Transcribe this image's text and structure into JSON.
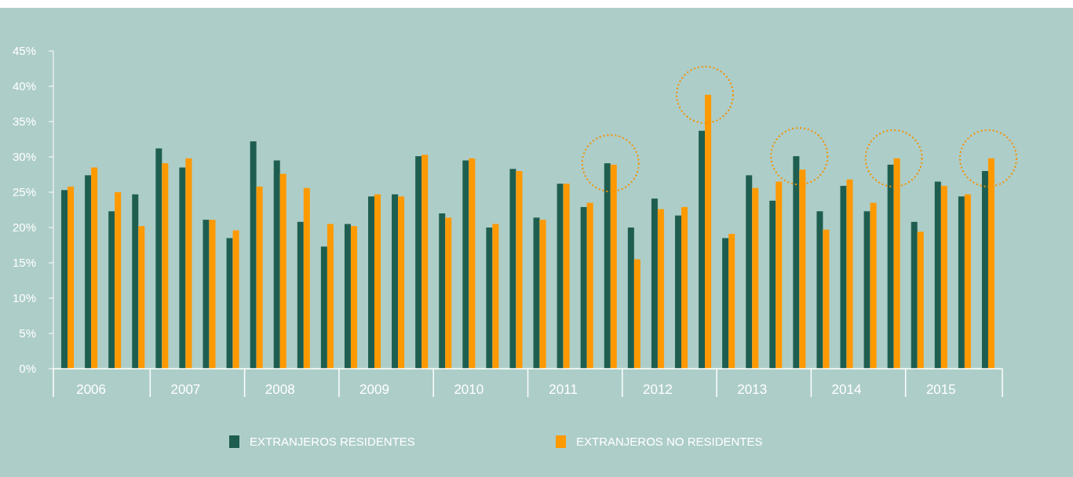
{
  "chart_data": {
    "type": "bar",
    "categories": [
      null,
      "2006",
      null,
      null,
      null,
      "2007",
      null,
      null,
      null,
      "2008",
      null,
      null,
      null,
      "2009",
      null,
      null,
      null,
      "2010",
      null,
      null,
      null,
      "2011",
      null,
      null,
      null,
      "2012",
      null,
      null,
      null,
      "2013",
      null,
      null,
      null,
      "2014",
      null,
      null,
      null,
      "2015",
      null,
      null
    ],
    "series": [
      {
        "name": "EXTRANJEROS RESIDENTES",
        "color": "#1e5e50",
        "values": [
          25.3,
          27.4,
          22.3,
          24.7,
          31.2,
          28.5,
          21.1,
          18.5,
          32.2,
          29.5,
          20.8,
          17.3,
          20.5,
          24.4,
          24.7,
          30.1,
          22.0,
          29.5,
          20.0,
          28.3,
          21.4,
          26.2,
          22.9,
          29.1,
          20.0,
          24.1,
          21.7,
          33.7,
          18.5,
          27.4,
          23.8,
          30.1,
          22.3,
          25.9,
          22.3,
          28.9,
          20.8,
          26.5,
          24.4,
          28.0
        ]
      },
      {
        "name": "EXTRANJEROS NO RESIDENTES",
        "color": "#ff9900",
        "values": [
          25.8,
          28.5,
          25.0,
          20.2,
          29.1,
          29.8,
          21.1,
          19.6,
          25.8,
          27.6,
          25.6,
          20.5,
          20.2,
          24.7,
          24.4,
          30.3,
          21.4,
          29.8,
          20.5,
          28.0,
          21.1,
          26.2,
          23.5,
          28.9,
          15.5,
          22.6,
          22.9,
          38.8,
          19.1,
          25.6,
          26.5,
          28.2,
          19.7,
          26.8,
          23.5,
          29.8,
          19.4,
          25.9,
          24.7,
          29.8
        ]
      }
    ],
    "ylim": [
      0,
      45
    ],
    "yticks": [
      {
        "value": 0,
        "label": "0%"
      },
      {
        "value": 5,
        "label": "5%"
      },
      {
        "value": 10,
        "label": "10%"
      },
      {
        "value": 15,
        "label": "15%"
      },
      {
        "value": 20,
        "label": "20%"
      },
      {
        "value": 25,
        "label": "25%"
      },
      {
        "value": 30,
        "label": "30%"
      },
      {
        "value": 35,
        "label": "35%"
      },
      {
        "value": 40,
        "label": "40%"
      },
      {
        "value": 45,
        "label": "45%"
      }
    ],
    "grid": false,
    "legend": "bottom"
  }
}
